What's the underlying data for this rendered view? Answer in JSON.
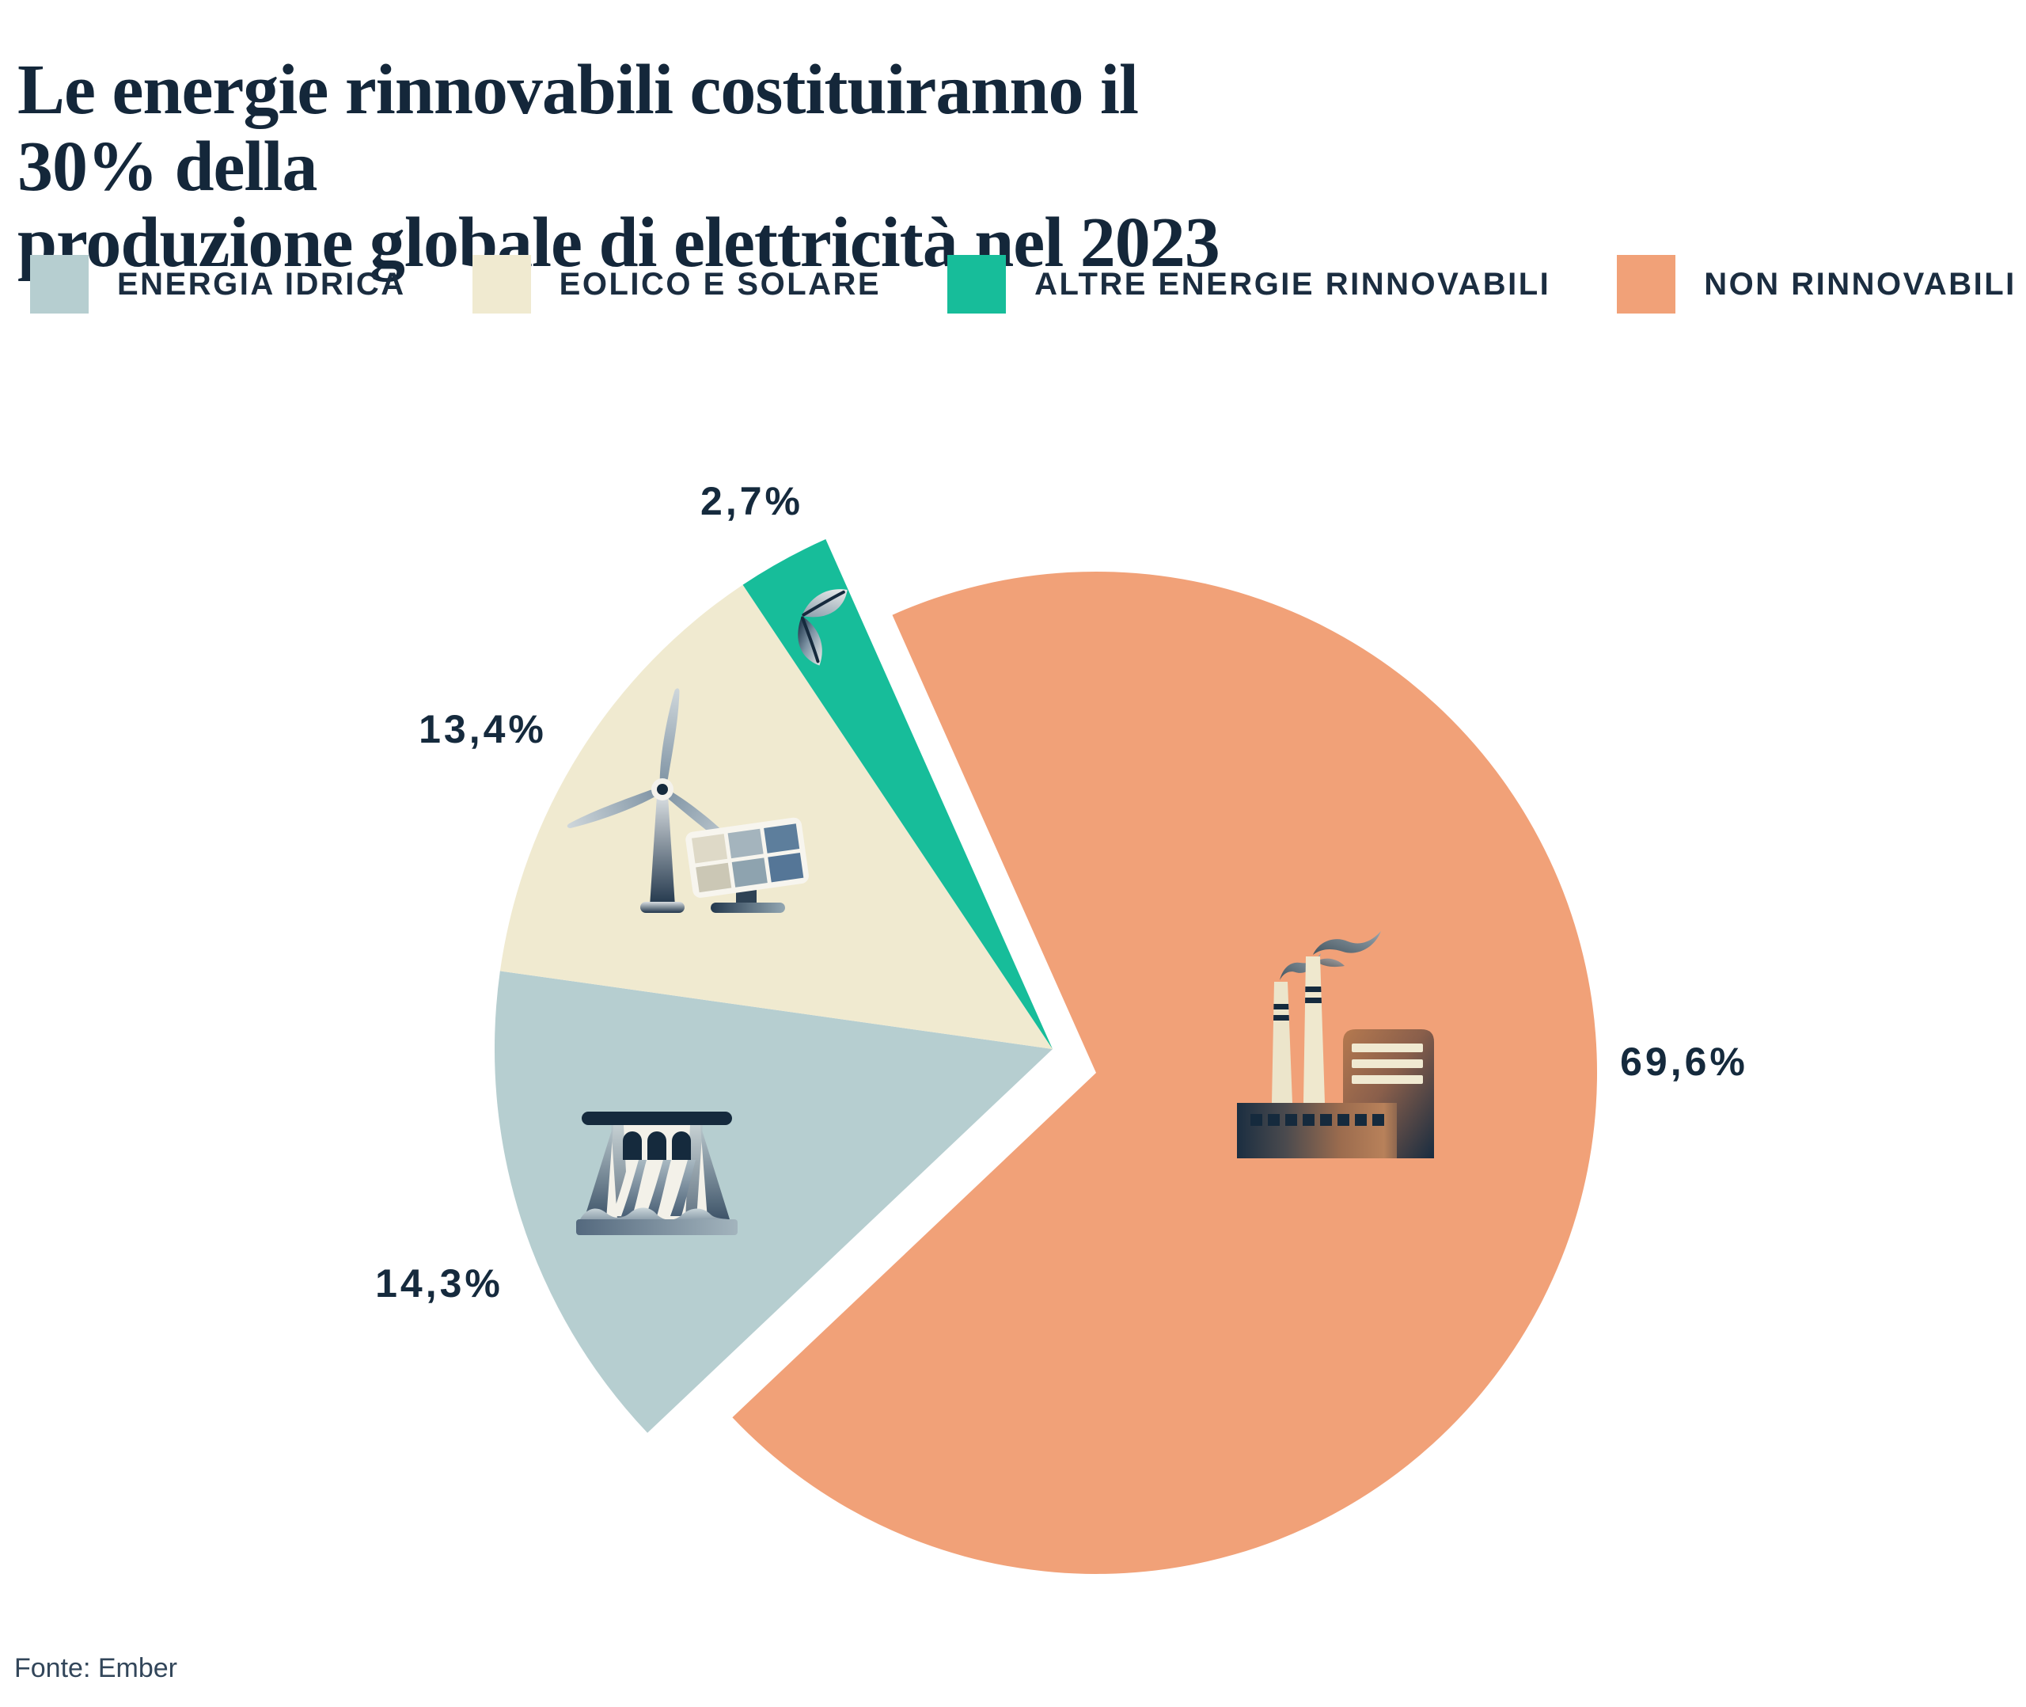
{
  "title": "Le energie rinnovabili costituiranno il 30% della\nproduzione globale di elettricità nel 2023",
  "source": "Fonte: Ember",
  "chart_data": {
    "type": "pie",
    "title": "Le energie rinnovabili costituiranno il 30% della produzione globale di elettricità nel 2023",
    "source": "Fonte: Ember",
    "legend_position": "top",
    "exploded_slice": "NON RINNOVABILI",
    "text_color": "#152a3d",
    "slices": [
      {
        "name": "ENERGIA IDRICA",
        "value": 14.3,
        "label": "14,3%",
        "color": "#b6ced0",
        "icon": "dam-icon"
      },
      {
        "name": "EOLICO E SOLARE",
        "value": 13.4,
        "label": "13,4%",
        "color": "#f0ead0",
        "icon": "wind-solar-icon"
      },
      {
        "name": "ALTRE ENERGIE RINNOVABILI",
        "value": 2.7,
        "label": "2,7%",
        "color": "#17bd9a",
        "icon": "leaf-icon"
      },
      {
        "name": "NON RINNOVABILI",
        "value": 69.6,
        "label": "69,6%",
        "color": "#f1a178",
        "icon": "factory-icon"
      }
    ]
  }
}
